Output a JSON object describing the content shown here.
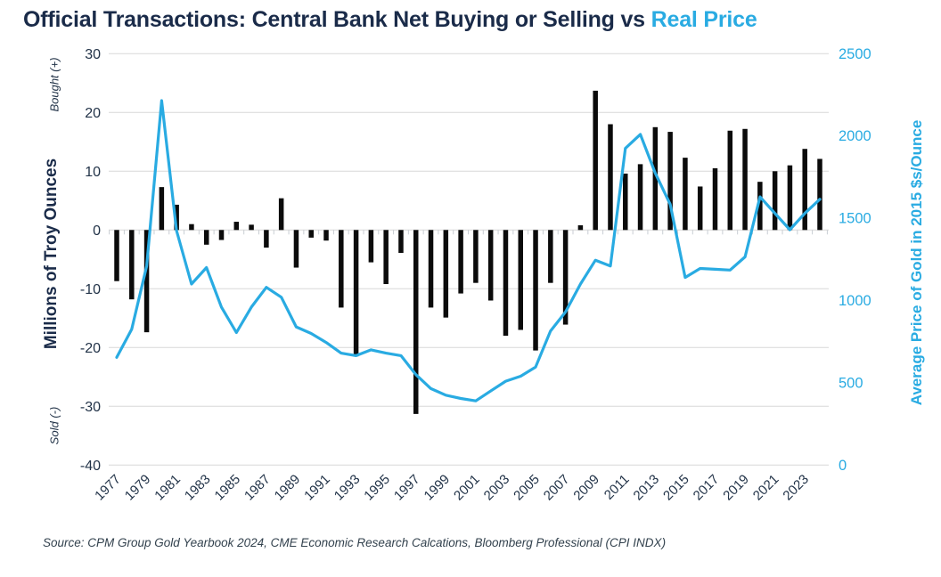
{
  "title": {
    "main": "Official Transactions: Central Bank Net Buying or Selling vs ",
    "accent": "Real Price"
  },
  "source": "Source: CPM Group Gold Yearbook 2024, CME Economic Research Calcations, Bloomberg Professional (CPI INDX)",
  "axes": {
    "left": {
      "label": "Millions of Troy Ounces",
      "top_annotation": "Bought (+)",
      "bottom_annotation": "Sold (-)",
      "ticks": [
        30,
        20,
        10,
        0,
        -10,
        -20,
        -30,
        -40
      ]
    },
    "right": {
      "label": "Average Price of Gold in 2015 $s/Ounce",
      "ticks": [
        2500,
        2000,
        1500,
        1000,
        500,
        0
      ]
    },
    "x": {
      "tick_labels": [
        "1977",
        "1979",
        "1981",
        "1983",
        "1985",
        "1987",
        "1989",
        "1991",
        "1993",
        "1995",
        "1997",
        "1999",
        "2001",
        "2003",
        "2005",
        "2007",
        "2009",
        "2011",
        "2013",
        "2015",
        "2017",
        "2019",
        "2021",
        "2023"
      ]
    }
  },
  "colors": {
    "navy": "#1a2b49",
    "axis_text": "#223348",
    "accent_blue": "#29abe2",
    "bar_black": "#0b0b0b",
    "grid_gray": "#d8d8d8",
    "tick_gray": "#c9ced4"
  },
  "chart_data": {
    "type": "bar+line",
    "title": "Official Transactions: Central Bank Net Buying or Selling vs Real Price",
    "x": [
      1977,
      1978,
      1979,
      1980,
      1981,
      1982,
      1983,
      1984,
      1985,
      1986,
      1987,
      1988,
      1989,
      1990,
      1991,
      1992,
      1993,
      1994,
      1995,
      1996,
      1997,
      1998,
      1999,
      2000,
      2001,
      2002,
      2003,
      2004,
      2005,
      2006,
      2007,
      2008,
      2009,
      2010,
      2011,
      2012,
      2013,
      2014,
      2015,
      2016,
      2017,
      2018,
      2019,
      2020,
      2021,
      2022,
      2023,
      2024
    ],
    "left_ylim": [
      -40,
      30
    ],
    "right_ylim": [
      0,
      2500
    ],
    "grid": true,
    "legend": "none",
    "series": [
      {
        "name": "Central Bank Net Buying or Selling",
        "type": "bar",
        "axis": "left",
        "units": "Millions of Troy Ounces",
        "values": [
          -8.7,
          -11.8,
          -17.4,
          7.3,
          4.3,
          1.0,
          -2.5,
          -1.7,
          1.4,
          0.9,
          -3.0,
          5.4,
          -6.4,
          -1.3,
          -1.8,
          -13.2,
          -21.5,
          -5.5,
          -9.2,
          -3.9,
          -31.3,
          -13.2,
          -14.9,
          -10.8,
          -9.0,
          -12.0,
          -18.0,
          -17.0,
          -20.5,
          -9.0,
          -16.1,
          0.8,
          23.7,
          18.0,
          9.6,
          11.2,
          17.5,
          16.7,
          12.3,
          7.4,
          10.5,
          16.9,
          17.2,
          8.2,
          10.0,
          11.0,
          13.8,
          12.1
        ]
      },
      {
        "name": "Real Price",
        "type": "line",
        "axis": "right",
        "units": "2015 $s/Ounce",
        "values": [
          655,
          825,
          1210,
          2215,
          1425,
          1100,
          1200,
          960,
          805,
          960,
          1080,
          1020,
          840,
          800,
          745,
          680,
          665,
          700,
          680,
          665,
          550,
          465,
          425,
          405,
          390,
          450,
          510,
          540,
          595,
          815,
          930,
          1100,
          1245,
          1210,
          1925,
          2010,
          1775,
          1585,
          1140,
          1195,
          1190,
          1185,
          1265,
          1630,
          1530,
          1430,
          1530,
          1615
        ]
      }
    ]
  }
}
